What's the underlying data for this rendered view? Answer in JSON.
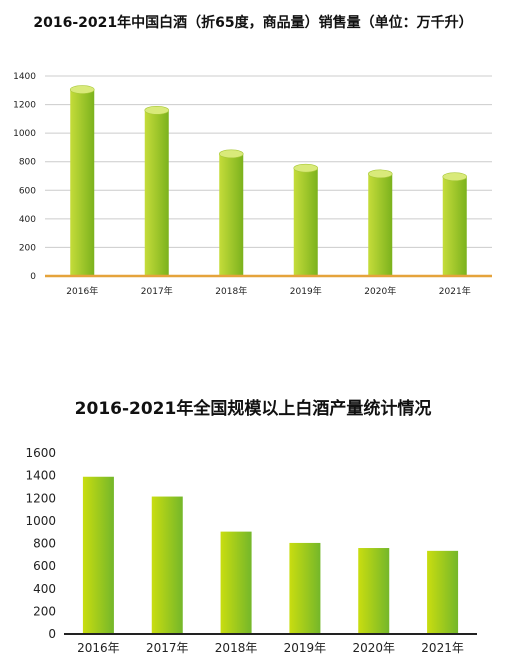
{
  "chart_data": [
    {
      "type": "bar",
      "title": "2016-2021年中国白酒（折65度，商品量）销售量（单位：万千升）",
      "categories": [
        "2016年",
        "2017年",
        "2018年",
        "2019年",
        "2020年",
        "2021年"
      ],
      "values": [
        1305,
        1160,
        855,
        755,
        715,
        695
      ],
      "yticks": [
        "0",
        "200",
        "400",
        "600",
        "800",
        "1000",
        "1200",
        "1400"
      ],
      "ylim": [
        0,
        1400
      ],
      "grid": true,
      "style": "cylinder",
      "colors": {
        "bar_light": "#c5dc3a",
        "bar_dark": "#7bb21d",
        "axis": "#e5a33b",
        "grid": "#cccccc"
      }
    },
    {
      "type": "bar",
      "title": "2016-2021年全国规模以上白酒产量统计情况",
      "categories": [
        "2016年",
        "2017年",
        "2018年",
        "2019年",
        "2020年",
        "2021年"
      ],
      "values": [
        1390,
        1215,
        905,
        805,
        760,
        735
      ],
      "yticks": [
        "0",
        "200",
        "400",
        "600",
        "800",
        "1000",
        "1200",
        "1400",
        "1600"
      ],
      "ylim": [
        0,
        1600
      ],
      "grid": false,
      "style": "flat",
      "colors": {
        "bar_light": "#c9dd10",
        "bar_dark": "#74b72a",
        "axis": "#222222"
      }
    }
  ]
}
